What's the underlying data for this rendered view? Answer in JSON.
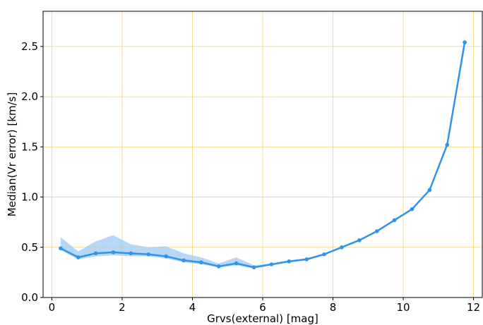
{
  "chart_data": {
    "type": "line",
    "title": "",
    "xlabel": "Grvs(external) [mag]",
    "ylabel": "Median(Vr error) [km/s]",
    "xlim": [
      -0.25,
      12.25
    ],
    "ylim": [
      0.0,
      2.85
    ],
    "xticks": [
      0,
      2,
      4,
      6,
      8,
      10,
      12
    ],
    "xtick_labels": [
      "0",
      "2",
      "4",
      "6",
      "8",
      "10",
      "12"
    ],
    "yticks": [
      0.0,
      0.5,
      1.0,
      1.5,
      2.0,
      2.5
    ],
    "ytick_labels": [
      "0.0",
      "0.5",
      "1.0",
      "1.5",
      "2.0",
      "2.5"
    ],
    "grid": true,
    "legend": "none",
    "colors": {
      "line": "#3094ea",
      "band": "#9ec9f2",
      "grid": "#f5d27a",
      "axes": "#000000"
    },
    "series": [
      {
        "x": [
          0.25,
          0.75,
          1.25,
          1.75,
          2.25,
          2.75,
          3.25,
          3.75,
          4.25,
          4.75,
          5.25,
          5.75,
          6.25,
          6.75,
          7.25,
          7.75,
          8.25,
          8.75,
          9.25,
          9.75,
          10.25,
          10.75,
          11.25,
          11.75
        ],
        "values": [
          0.49,
          0.4,
          0.44,
          0.45,
          0.44,
          0.43,
          0.41,
          0.37,
          0.35,
          0.31,
          0.34,
          0.3,
          0.33,
          0.36,
          0.38,
          0.43,
          0.5,
          0.57,
          0.66,
          0.77,
          0.88,
          1.07,
          1.52,
          2.54
        ],
        "lower": [
          0.47,
          0.38,
          0.41,
          0.42,
          0.41,
          0.41,
          0.39,
          0.35,
          0.33,
          0.3,
          0.32,
          0.29,
          0.32,
          0.35,
          0.37,
          0.42,
          0.49,
          0.56,
          0.65,
          0.76,
          0.87,
          1.06,
          1.51,
          2.51
        ],
        "upper": [
          0.6,
          0.46,
          0.56,
          0.62,
          0.53,
          0.5,
          0.51,
          0.44,
          0.4,
          0.34,
          0.4,
          0.32,
          0.34,
          0.37,
          0.39,
          0.44,
          0.51,
          0.58,
          0.67,
          0.78,
          0.89,
          1.08,
          1.53,
          2.6
        ]
      }
    ]
  }
}
